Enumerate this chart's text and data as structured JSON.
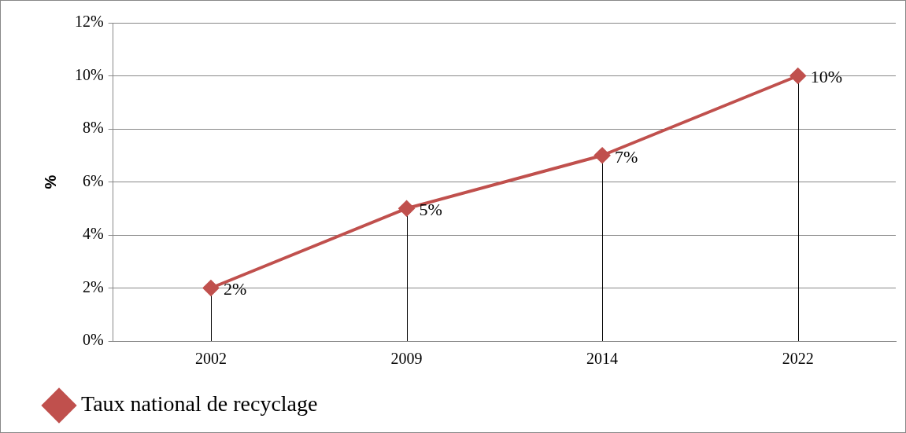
{
  "chart_data": {
    "type": "line",
    "ylabel": "%",
    "categories": [
      "2002",
      "2009",
      "2014",
      "2022"
    ],
    "series": [
      {
        "name": "Taux national de recyclage",
        "color": "#c0504d",
        "values": [
          2,
          5,
          7,
          10
        ],
        "value_labels": [
          "2%",
          "5%",
          "7%",
          "10%"
        ],
        "errors": [
          [
            0,
            2
          ],
          [
            0,
            5
          ],
          [
            0,
            7
          ],
          [
            0,
            10
          ]
        ]
      }
    ],
    "ylim": [
      0,
      12
    ],
    "yticks": [
      {
        "value": 0,
        "label": "0%"
      },
      {
        "value": 2,
        "label": "2%"
      },
      {
        "value": 4,
        "label": "4%"
      },
      {
        "value": 6,
        "label": "6%"
      },
      {
        "value": 8,
        "label": "8%"
      },
      {
        "value": 10,
        "label": "10%"
      },
      {
        "value": 12,
        "label": "12%"
      }
    ],
    "grid": "y",
    "legend": "bottom",
    "marker": "diamond",
    "line_style": "solid"
  }
}
